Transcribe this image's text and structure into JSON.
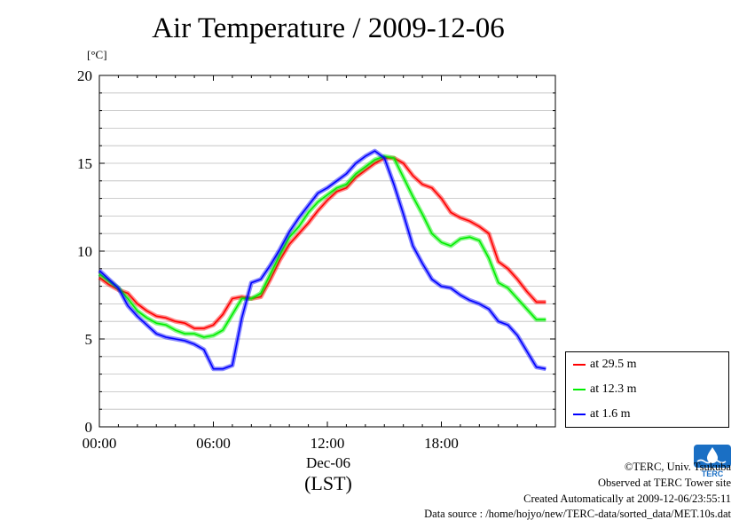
{
  "chart_data": {
    "type": "line",
    "title": "Air Temperature / 2009-12-06",
    "ylabel": "[°C]",
    "xlabel_date": "Dec-06",
    "xlabel_unit": "(LST)",
    "xlim": [
      0,
      24
    ],
    "ylim": [
      0,
      20
    ],
    "x_ticks": [
      0,
      6,
      12,
      18
    ],
    "x_tick_labels": [
      "00:00",
      "06:00",
      "12:00",
      "18:00"
    ],
    "y_ticks": [
      0,
      5,
      10,
      15,
      20
    ],
    "y_tick_labels": [
      "0",
      "5",
      "10",
      "15",
      "20"
    ],
    "grid": true,
    "legend_position": "outside-right-bottom",
    "x": [
      0,
      0.5,
      1,
      1.5,
      2,
      2.5,
      3,
      3.5,
      4,
      4.5,
      5,
      5.5,
      6,
      6.5,
      7,
      7.5,
      8,
      8.5,
      9,
      9.5,
      10,
      10.5,
      11,
      11.5,
      12,
      12.5,
      13,
      13.5,
      14,
      14.5,
      15,
      15.5,
      16,
      16.5,
      17,
      17.5,
      18,
      18.5,
      19,
      19.5,
      20,
      20.5,
      21,
      21.5,
      22,
      22.5,
      23,
      23.5
    ],
    "series": [
      {
        "name": "at 29.5 m",
        "color": "#ff0000",
        "values": [
          8.5,
          8.1,
          7.8,
          7.6,
          7.0,
          6.6,
          6.3,
          6.2,
          6.0,
          5.9,
          5.6,
          5.6,
          5.8,
          6.4,
          7.3,
          7.4,
          7.3,
          7.4,
          8.4,
          9.5,
          10.4,
          11.0,
          11.6,
          12.3,
          12.9,
          13.4,
          13.6,
          14.2,
          14.6,
          15.0,
          15.3,
          15.3,
          15.0,
          14.3,
          13.8,
          13.6,
          13.0,
          12.2,
          11.9,
          11.7,
          11.4,
          11.0,
          9.4,
          9.0,
          8.4,
          7.7,
          7.1,
          7.1
        ]
      },
      {
        "name": "at 12.3 m",
        "color": "#00ee00",
        "values": [
          8.7,
          8.3,
          7.9,
          7.3,
          6.6,
          6.2,
          5.9,
          5.8,
          5.5,
          5.3,
          5.3,
          5.1,
          5.2,
          5.5,
          6.4,
          7.3,
          7.3,
          7.6,
          8.7,
          9.8,
          10.8,
          11.4,
          12.2,
          12.8,
          13.2,
          13.6,
          13.8,
          14.4,
          14.8,
          15.2,
          15.4,
          15.3,
          14.2,
          13.1,
          12.1,
          11.0,
          10.5,
          10.3,
          10.7,
          10.8,
          10.6,
          9.6,
          8.2,
          7.9,
          7.3,
          6.7,
          6.1,
          6.1
        ]
      },
      {
        "name": "at 1.6 m",
        "color": "#0000ff",
        "values": [
          8.9,
          8.4,
          7.9,
          6.9,
          6.3,
          5.8,
          5.3,
          5.1,
          5.0,
          4.9,
          4.7,
          4.4,
          3.3,
          3.3,
          3.5,
          6.2,
          8.2,
          8.4,
          9.2,
          10.1,
          11.1,
          11.9,
          12.6,
          13.3,
          13.6,
          14.0,
          14.4,
          15.0,
          15.4,
          15.7,
          15.3,
          13.8,
          12.1,
          10.3,
          9.3,
          8.4,
          8.0,
          7.9,
          7.5,
          7.2,
          7.0,
          6.7,
          6.0,
          5.8,
          5.2,
          4.3,
          3.4,
          3.3
        ]
      }
    ]
  },
  "legend": {
    "items": [
      {
        "label": "at 29.5 m",
        "color": "#ff0000"
      },
      {
        "label": "at 12.3 m",
        "color": "#00ee00"
      },
      {
        "label": "at 1.6 m",
        "color": "#0000ff"
      }
    ]
  },
  "credits": {
    "line1": "©TERC, Univ. Tsukuba",
    "line2": "Observed at TERC Tower site",
    "line3": "Created Automatically at 2009-12-06/23:55:11",
    "line4": "Data source : /home/hojyo/new/TERC-data/sorted_data/MET.10s.dat"
  },
  "logo": {
    "text": "TERC",
    "color": "#1a6fc4"
  }
}
